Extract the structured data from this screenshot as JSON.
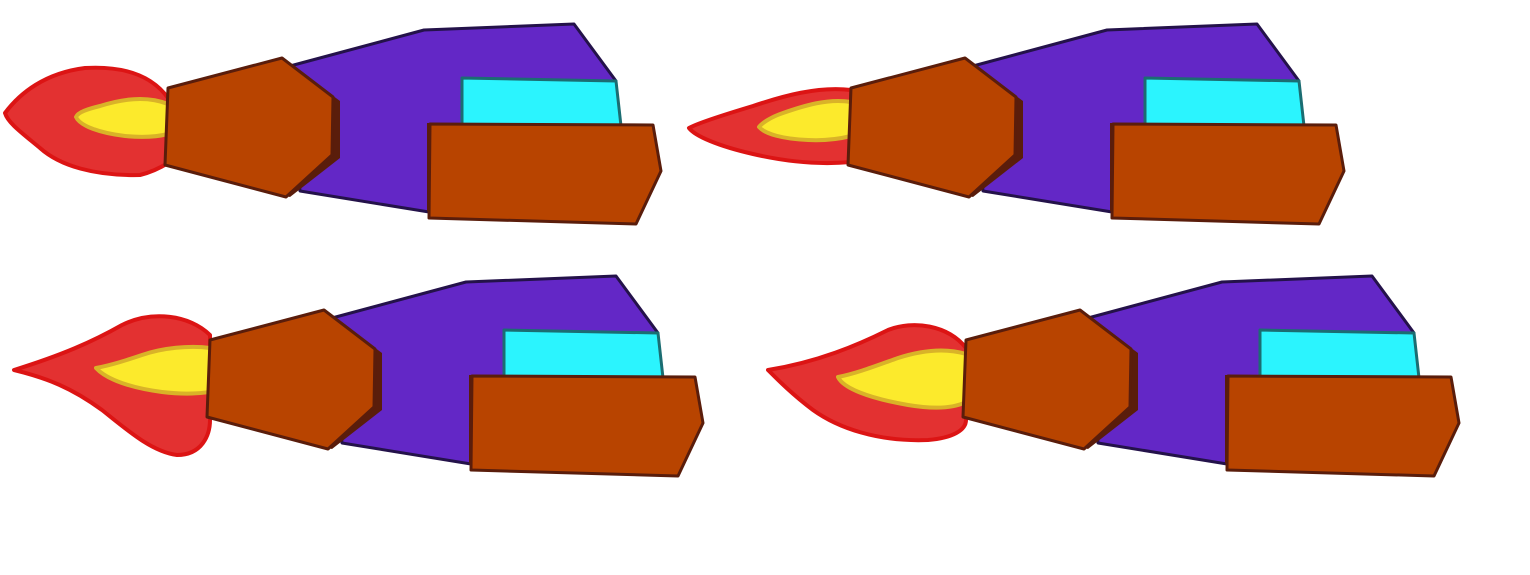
{
  "sprite_sheet": {
    "layout": "2x2 grid",
    "frame_count": 4,
    "colors": {
      "background": "#ffffff",
      "hull": "#6327c6",
      "hull_outline": "#24124a",
      "cockpit": "#2bf4fe",
      "cockpit_outline": "#1b6d72",
      "armor": "#b84400",
      "armor_outline": "#5a1d0b",
      "flame_outer": "#e33131",
      "flame_outer_outline": "#dc1414",
      "flame_inner": "#fcea2c",
      "flame_inner_outline": "#d9b328"
    },
    "frames": [
      {
        "name": "ship-frame-1",
        "flame": "short-round"
      },
      {
        "name": "ship-frame-2",
        "flame": "thin-pointed"
      },
      {
        "name": "ship-frame-3",
        "flame": "long-wavy"
      },
      {
        "name": "ship-frame-4",
        "flame": "curled-tip"
      }
    ]
  }
}
